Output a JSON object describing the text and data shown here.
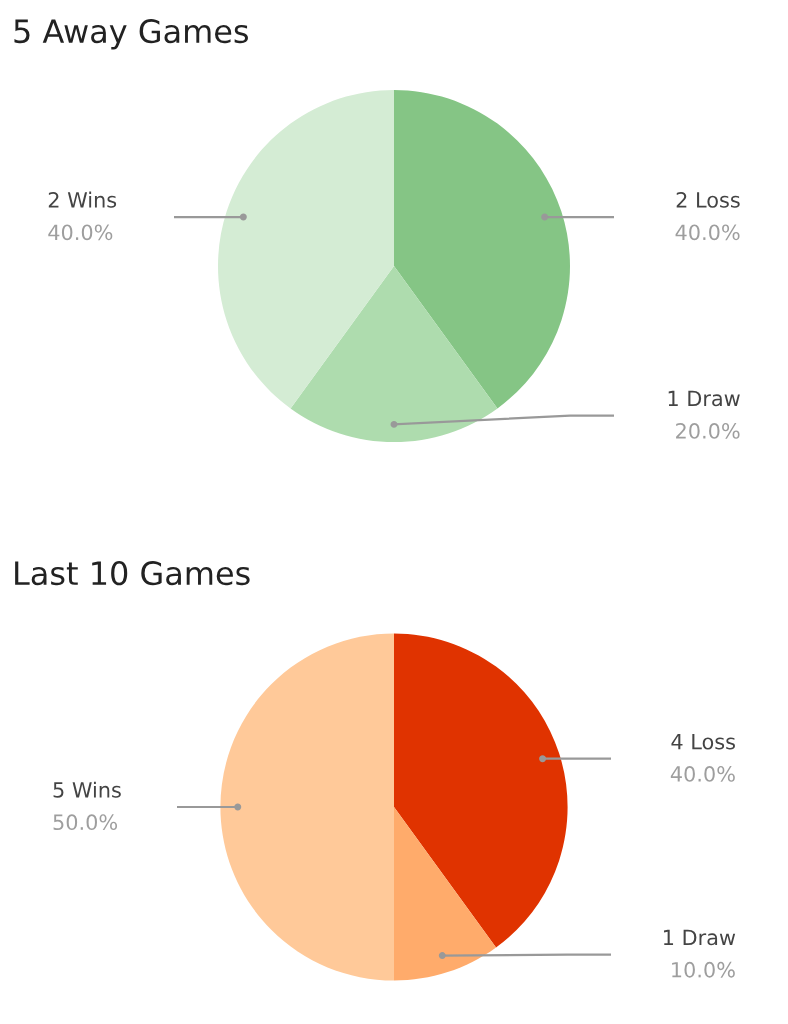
{
  "chart_data": [
    {
      "type": "pie",
      "title": "5 Away Games",
      "categories": [
        "2 Loss",
        "1 Draw",
        "2 Wins"
      ],
      "values": [
        40,
        20,
        40
      ],
      "colors": [
        "#85c585",
        "#aedcae",
        "#d4ecd4"
      ],
      "value_labels": [
        "40.0%",
        "20.0%",
        "40.0%"
      ]
    },
    {
      "type": "pie",
      "title": "Last 10 Games",
      "categories": [
        "4 Loss",
        "1 Draw",
        "5 Wins"
      ],
      "values": [
        40,
        10,
        50
      ],
      "colors": [
        "#e03300",
        "#ffab6b",
        "#ffc999"
      ],
      "value_labels": [
        "40.0%",
        "10.0%",
        "50.0%"
      ]
    }
  ]
}
